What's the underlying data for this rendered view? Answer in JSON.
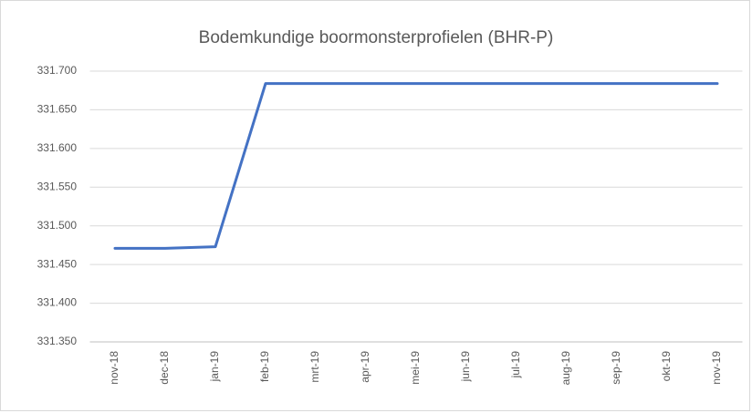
{
  "chart_data": {
    "type": "line",
    "title": "Bodemkundige boormonsterprofielen (BHR-P)",
    "categories": [
      "nov-18",
      "dec-18",
      "jan-19",
      "feb-19",
      "mrt-19",
      "apr-19",
      "mei-19",
      "jun-19",
      "jul-19",
      "aug-19",
      "sep-19",
      "okt-19",
      "nov-19"
    ],
    "series": [
      {
        "name": "BHR-P",
        "color": "#4472c4",
        "values": [
          331471,
          331471,
          331473,
          331684,
          331684,
          331684,
          331684,
          331684,
          331684,
          331684,
          331684,
          331684,
          331684
        ]
      }
    ],
    "ylim": [
      331350,
      331700
    ],
    "yticks": [
      {
        "value": 331350,
        "label": "331.350"
      },
      {
        "value": 331400,
        "label": "331.400"
      },
      {
        "value": 331450,
        "label": "331.450"
      },
      {
        "value": 331500,
        "label": "331.500"
      },
      {
        "value": 331550,
        "label": "331.550"
      },
      {
        "value": 331600,
        "label": "331.600"
      },
      {
        "value": 331650,
        "label": "331.650"
      },
      {
        "value": 331700,
        "label": "331.700"
      }
    ],
    "grid": true
  }
}
